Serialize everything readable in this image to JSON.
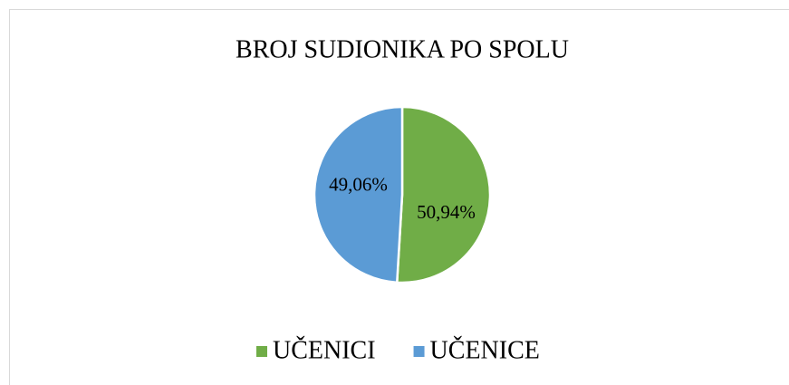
{
  "chart_data": {
    "type": "pie",
    "title": "BROJ SUDIONIKA PO SPOLU",
    "categories": [
      "UČENICI",
      "UČENICE"
    ],
    "values": [
      50.94,
      49.06
    ],
    "value_labels": [
      "50,94%",
      "49,06%"
    ],
    "colors": [
      "#70ad47",
      "#5b9bd5"
    ],
    "legend": "bottom"
  }
}
